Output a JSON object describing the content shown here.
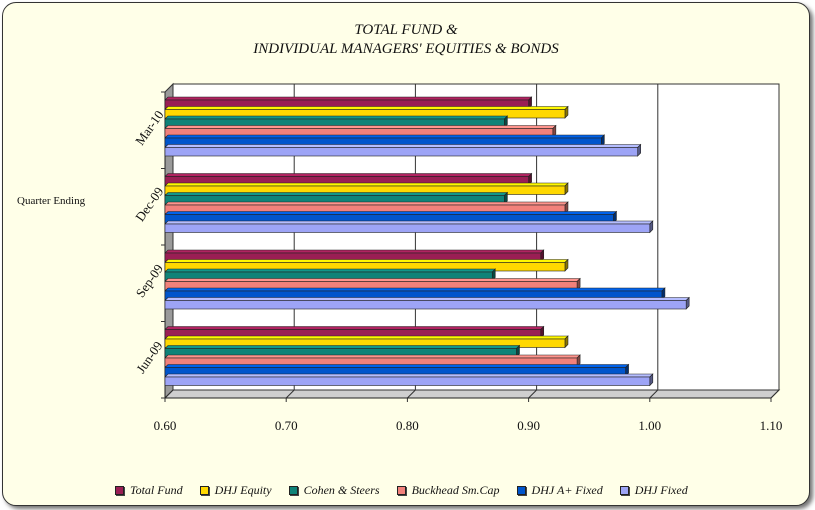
{
  "chart_data": {
    "type": "bar",
    "orientation": "horizontal",
    "title": [
      "TOTAL FUND &",
      "INDIVIDUAL MANAGERS' EQUITIES & BONDS"
    ],
    "ylabel": "Quarter Ending",
    "xlabel": "",
    "categories": [
      "Jun-09",
      "Sep-09",
      "Dec-09",
      "Mar-10"
    ],
    "xlim": [
      0.6,
      1.1
    ],
    "xticks": [
      "0.60",
      "0.70",
      "0.80",
      "0.90",
      "1.00",
      "1.10"
    ],
    "grid": true,
    "legend_position": "bottom",
    "series": [
      {
        "name": "Total Fund",
        "color": "#9a1e54",
        "values": [
          0.91,
          0.91,
          0.9,
          0.9
        ]
      },
      {
        "name": "DHJ Equity",
        "color": "#ffd800",
        "values": [
          0.93,
          0.93,
          0.93,
          0.93
        ]
      },
      {
        "name": "Cohen & Steers",
        "color": "#0f8378",
        "values": [
          0.89,
          0.87,
          0.88,
          0.88
        ]
      },
      {
        "name": "Buckhead Sm.Cap",
        "color": "#f2817b",
        "values": [
          0.94,
          0.94,
          0.93,
          0.92
        ]
      },
      {
        "name": "DHJ A+ Fixed",
        "color": "#0055cc",
        "values": [
          0.98,
          1.01,
          0.97,
          0.96
        ]
      },
      {
        "name": "DHJ Fixed",
        "color": "#9da4f6",
        "values": [
          1.0,
          1.03,
          1.0,
          0.99
        ]
      }
    ]
  }
}
